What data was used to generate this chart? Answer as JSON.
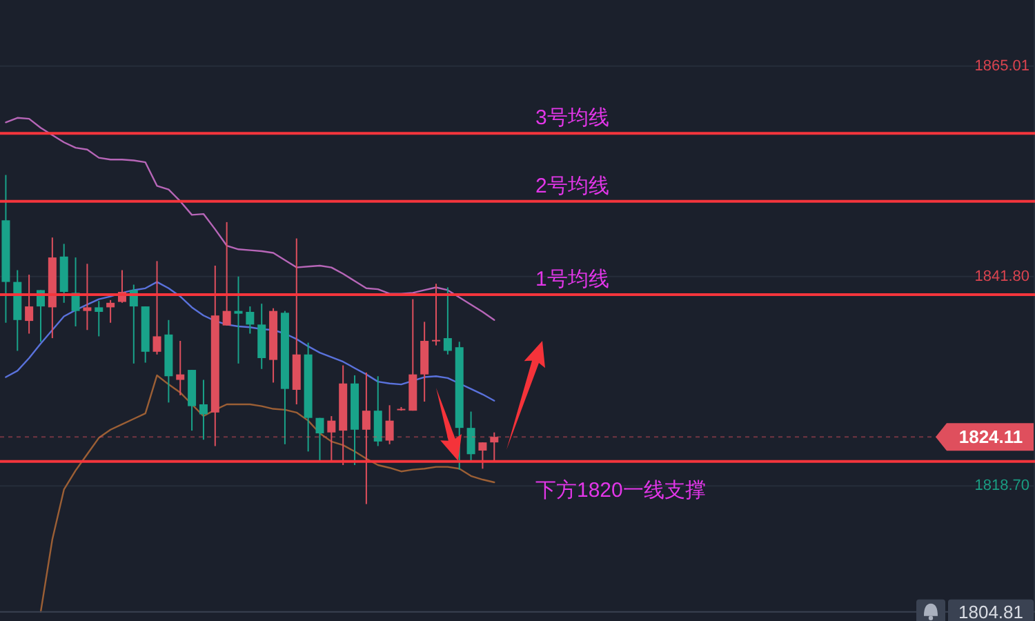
{
  "chart_data": {
    "type": "candlestick",
    "categories": [
      null,
      null,
      null,
      null,
      null,
      null,
      null,
      null,
      null,
      null,
      null,
      null,
      null,
      null,
      null,
      null,
      null,
      null,
      null,
      null,
      null,
      null,
      null,
      null,
      null,
      null,
      null,
      null,
      null,
      null,
      null,
      null,
      null,
      null,
      null,
      null,
      null,
      null,
      null,
      null,
      null,
      null,
      null,
      null,
      null,
      null,
      null,
      null,
      null,
      null,
      null,
      null,
      null,
      null,
      null,
      null,
      null,
      null,
      null,
      null,
      null,
      null,
      null,
      null,
      null,
      null,
      null,
      null,
      null,
      null,
      null,
      null,
      null,
      null,
      null,
      null,
      null,
      null,
      null,
      null,
      null,
      null,
      null,
      null,
      null,
      null,
      null,
      null,
      null
    ],
    "ohlc": [
      [
        1848.0,
        1853.0,
        1836.7,
        1841.2
      ],
      [
        1841.2,
        1842.5,
        1833.6,
        1837.0
      ],
      [
        1836.9,
        1842.0,
        1835.5,
        1838.5
      ],
      [
        1840.3,
        1840.3,
        1834.6,
        1838.5
      ],
      [
        1838.4,
        1846.1,
        1835.0,
        1843.9
      ],
      [
        1844.0,
        1845.4,
        1838.9,
        1840.1
      ],
      [
        1840.0,
        1843.9,
        1836.3,
        1838.0
      ],
      [
        1838.0,
        1843.2,
        1835.9,
        1838.4
      ],
      [
        1838.4,
        1839.1,
        1835.2,
        1837.9
      ],
      [
        1838.4,
        1839.2,
        1836.7,
        1838.9
      ],
      [
        1839.0,
        1842.5,
        1838.9,
        1840.1
      ],
      [
        1840.3,
        1840.9,
        1832.2,
        1838.5
      ],
      [
        1838.5,
        1838.5,
        1832.3,
        1833.5
      ],
      [
        1833.5,
        1843.5,
        1833.2,
        1835.2
      ],
      [
        1835.4,
        1837.0,
        1827.9,
        1830.8
      ],
      [
        1830.4,
        1834.7,
        1828.7,
        1831.0
      ],
      [
        1831.5,
        1831.5,
        1824.8,
        1827.5
      ],
      [
        1827.7,
        1830.4,
        1823.8,
        1826.6
      ],
      [
        1826.8,
        1843.0,
        1823.1,
        1837.5
      ],
      [
        1836.4,
        1847.8,
        1836.4,
        1838.0
      ],
      [
        1838.0,
        1841.8,
        1832.2,
        1837.7
      ],
      [
        1837.9,
        1838.5,
        1835.5,
        1836.5
      ],
      [
        1836.5,
        1838.8,
        1831.6,
        1832.8
      ],
      [
        1832.6,
        1838.3,
        1830.1,
        1838.0
      ],
      [
        1837.8,
        1838.0,
        1823.3,
        1829.4
      ],
      [
        1829.3,
        1846.0,
        1827.7,
        1833.2
      ],
      [
        1833.2,
        1834.5,
        1822.5,
        1826.2
      ],
      [
        1826.2,
        1826.2,
        1821.5,
        1824.5
      ],
      [
        1824.6,
        1826.4,
        1821.5,
        1825.9
      ],
      [
        1824.8,
        1832.0,
        1821.0,
        1830.0
      ],
      [
        1830.0,
        1830.9,
        1821.0,
        1824.9
      ],
      [
        1824.9,
        1831.2,
        1816.7,
        1827.0
      ],
      [
        1827.0,
        1830.8,
        1823.1,
        1823.6
      ],
      [
        1823.7,
        1827.6,
        1823.3,
        1825.9
      ],
      [
        1827.1,
        1827.4,
        1827.0,
        1827.2
      ],
      [
        1827.0,
        1839.3,
        1827.0,
        1831.0
      ],
      [
        1831.0,
        1836.8,
        1828.0,
        1834.7
      ],
      [
        1834.7,
        1841.0,
        1834.2,
        1834.8
      ],
      [
        1835.0,
        1840.6,
        1833.2,
        1833.6
      ],
      [
        1834.0,
        1834.6,
        1820.5,
        1825.1
      ],
      [
        1825.1,
        1826.9,
        1821.5,
        1822.2
      ],
      [
        1822.6,
        1823.5,
        1820.6,
        1823.5
      ],
      [
        1823.5,
        1824.6,
        1821.5,
        1824.11
      ],
      null,
      null,
      null,
      null,
      null,
      null,
      null,
      null,
      null,
      null,
      null,
      null,
      null,
      null,
      null,
      null,
      null,
      null,
      null,
      null,
      null,
      null,
      null,
      null,
      null,
      null,
      null,
      null,
      null,
      null,
      null,
      null,
      null,
      null,
      null,
      null,
      null,
      null,
      null,
      null,
      null,
      null,
      null,
      null,
      null,
      null
    ],
    "colors": [
      "#19a38a",
      "#19a38a",
      "#df4f5d",
      "#19a38a",
      "#df4f5d",
      "#19a38a",
      "#19a38a",
      "#df4f5d",
      "#19a38a",
      "#df4f5d",
      "#df4f5d",
      "#19a38a",
      "#19a38a",
      "#df4f5d",
      "#19a38a",
      "#df4f5d",
      "#19a38a",
      "#19a38a",
      "#df4f5d",
      "#df4f5d",
      "#19a38a",
      "#19a38a",
      "#19a38a",
      "#df4f5d",
      "#19a38a",
      "#df4f5d",
      "#19a38a",
      "#19a38a",
      "#df4f5d",
      "#df4f5d",
      "#19a38a",
      "#df4f5d",
      "#19a38a",
      "#df4f5d",
      "#df4f5d",
      "#df4f5d",
      "#df4f5d",
      "#df4f5d",
      "#19a38a",
      "#19a38a",
      "#19a38a",
      "#df4f5d",
      "#df4f5d",
      null,
      null,
      null,
      null,
      null,
      null,
      null,
      null,
      null,
      null,
      null,
      null,
      null,
      null,
      null,
      null,
      null,
      null,
      null,
      null,
      null,
      null,
      null,
      null,
      null,
      null,
      null,
      null,
      null,
      null,
      null,
      null,
      null,
      null,
      null,
      null,
      null,
      null,
      null,
      null,
      null,
      null,
      null,
      null,
      null,
      null
    ],
    "series": [
      {
        "type": "line",
        "color": "#b766b8",
        "values": [
          1858.8,
          1859.3,
          1859.2,
          1858.2,
          1857.4,
          1856.6,
          1856.0,
          1855.8,
          1854.9,
          1854.7,
          1854.7,
          1854.6,
          1854.4,
          1851.8,
          1851.4,
          1850.1,
          1848.6,
          1848.7,
          1847.0,
          1845.2,
          1844.8,
          1844.7,
          1844.6,
          1844.4,
          1843.6,
          1842.8,
          1842.9,
          1843.0,
          1842.8,
          1842.1,
          1841.3,
          1840.5,
          1840.4,
          1839.9,
          1839.9,
          1840.0,
          1840.3,
          1840.6,
          1840.3,
          1839.5,
          1838.7,
          1837.9,
          1837.0,
          null,
          null,
          null,
          null,
          null,
          null,
          null,
          null,
          null,
          null,
          null,
          null,
          null,
          null,
          null,
          null,
          null,
          null,
          null,
          null,
          null,
          null,
          null,
          null,
          null,
          null,
          null,
          null,
          null,
          null,
          null,
          null,
          null,
          null,
          null,
          null,
          null,
          null,
          null,
          null,
          null,
          null,
          null,
          null,
          null,
          null
        ]
      },
      {
        "type": "line",
        "color": "#5a72dc",
        "values": [
          1830.7,
          1831.4,
          1832.8,
          1834.4,
          1835.9,
          1837.4,
          1838.1,
          1838.7,
          1839.3,
          1839.6,
          1840.0,
          1840.3,
          1840.5,
          1841.2,
          1840.5,
          1839.6,
          1838.4,
          1837.5,
          1836.9,
          1836.5,
          1836.3,
          1836.2,
          1836.0,
          1835.9,
          1835.5,
          1834.9,
          1834.1,
          1833.4,
          1832.9,
          1832.4,
          1831.7,
          1831.0,
          1830.2,
          1830.0,
          1829.9,
          1830.3,
          1830.7,
          1830.8,
          1830.6,
          1830.0,
          1829.4,
          1828.8,
          1828.1,
          null,
          null,
          null,
          null,
          null,
          null,
          null,
          null,
          null,
          null,
          null,
          null,
          null,
          null,
          null,
          null,
          null,
          null,
          null,
          null,
          null,
          null,
          null,
          null,
          null,
          null,
          null,
          null,
          null,
          null,
          null,
          null,
          null,
          null,
          null,
          null,
          null,
          null,
          null,
          null,
          null,
          null,
          null,
          null,
          null,
          null
        ]
      },
      {
        "type": "line",
        "color": "#9c5f35",
        "values": [
          null,
          null,
          null,
          1804.8,
          1812.8,
          1818.3,
          1820.4,
          1822.2,
          1824.0,
          1824.9,
          1825.5,
          1826.1,
          1826.7,
          1830.9,
          1829.9,
          1829.0,
          1827.7,
          1826.4,
          1827.1,
          1827.7,
          1827.7,
          1827.7,
          1827.5,
          1827.2,
          1827.1,
          1826.8,
          1825.9,
          1824.5,
          1823.6,
          1823.2,
          1822.5,
          1821.7,
          1821.0,
          1820.7,
          1820.3,
          1820.5,
          1820.6,
          1820.8,
          1820.8,
          1820.6,
          1819.8,
          1819.4,
          1819.1,
          null,
          null,
          null,
          null,
          null,
          null,
          null,
          null,
          null,
          null,
          null,
          null,
          null,
          null,
          null,
          null,
          null,
          null,
          null,
          null,
          null,
          null,
          null,
          null,
          null,
          null,
          null,
          null,
          null,
          null,
          null,
          null,
          null,
          null,
          null,
          null,
          null,
          null,
          null,
          null,
          null,
          null,
          null,
          null,
          null,
          null
        ]
      }
    ],
    "ylim": [
      1803.8,
      1872.3
    ],
    "yticks": [
      1865.01,
      {
        "value": 1841.8,
        "label": "1841.80"
      },
      {
        "value": 1818.7,
        "label": "1818.70"
      }
    ],
    "ref_lines": [
      {
        "axis": "y",
        "value": 1857.6,
        "color": "#f4353c",
        "line_style": "solid"
      },
      {
        "axis": "y",
        "value": 1850.1,
        "color": "#f4353c",
        "line_style": "solid"
      },
      {
        "axis": "y",
        "value": 1839.8,
        "color": "#f4353c",
        "line_style": "solid"
      },
      {
        "axis": "y",
        "value": 1821.4,
        "color": "#f4353c",
        "line_style": "solid"
      },
      {
        "axis": "y",
        "value": 1824.11,
        "label": "1824.11",
        "color": "#df4f5d",
        "line_style": "dotted"
      },
      {
        "axis": "y",
        "value": 1804.81,
        "label": "1804.81",
        "color": "#3a4252",
        "line_style": "solid"
      }
    ],
    "annotations": [
      {
        "text": "3号均线",
        "y": 1857.6
      },
      {
        "text": "2号均线",
        "y": 1850.1
      },
      {
        "text": "1号均线",
        "y": 1839.8
      },
      {
        "text": "下方1820一线支撑",
        "y": 1821.4
      }
    ],
    "grid": "y",
    "tick_labels": "y"
  }
}
